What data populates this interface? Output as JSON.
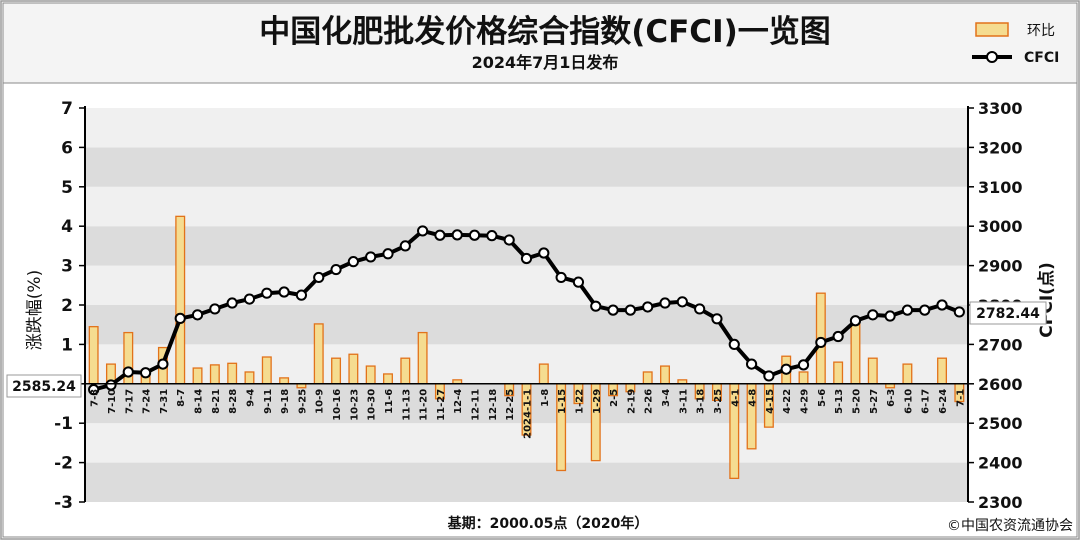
{
  "header": {
    "title": "中国化肥批发价格综合指数(CFCI)一览图",
    "subtitle": "2024年7月1日发布"
  },
  "legend": {
    "bar_label": "环比",
    "line_label": "CFCI"
  },
  "footer": {
    "base_note": "基期：2000.05点（2020年）",
    "copyright": "©中国农资流通协会"
  },
  "callouts": {
    "start_value": "2585.24",
    "end_value": "2782.44"
  },
  "colors": {
    "bar_fill": "#f5dc90",
    "bar_edge": "#e2721a",
    "line": "#000000",
    "marker_fill": "#ffffff",
    "plot_band_dark": "#dcdcdc",
    "plot_band_light": "#f0f0f0"
  },
  "chart_data": {
    "type": "bar+line",
    "title": "中国化肥批发价格综合指数(CFCI)一览图",
    "subtitle": "2024年7月1日发布",
    "ylabel_left": "涨跌幅(%)",
    "ylabel_right": "CFCI(点)",
    "xlabel": "基期：2000.05点（2020年）",
    "ylim_left": [
      -3,
      7
    ],
    "ylim_right": [
      2300,
      3300
    ],
    "yticks_left": [
      "7",
      "6",
      "5",
      "4",
      "3",
      "2",
      "1",
      "0",
      "-1",
      "-2",
      "-3"
    ],
    "yticks_right": [
      "3300",
      "3200",
      "3100",
      "3000",
      "2900",
      "2800",
      "2700",
      "2600",
      "2500",
      "2400",
      "2300"
    ],
    "grid": "horizontal bands",
    "legend_position": "top-right",
    "categories": [
      "7-3",
      "7-10",
      "7-17",
      "7-24",
      "7-31",
      "8-7",
      "8-14",
      "8-21",
      "8-28",
      "9-4",
      "9-11",
      "9-18",
      "9-25",
      "10-9",
      "10-16",
      "10-23",
      "10-30",
      "11-6",
      "11-13",
      "11-20",
      "11-27",
      "12-4",
      "12-11",
      "12-18",
      "12-25",
      "2024-1-1",
      "1-8",
      "1-15",
      "1-22",
      "1-29",
      "2-5",
      "2-19",
      "2-26",
      "3-4",
      "3-11",
      "3-18",
      "3-25",
      "4-1",
      "4-8",
      "4-15",
      "4-22",
      "4-29",
      "5-6",
      "5-13",
      "5-20",
      "5-27",
      "6-3",
      "6-10",
      "6-17",
      "6-24",
      "7-1"
    ],
    "series": [
      {
        "name": "环比",
        "type": "bar",
        "axis": "left",
        "values": [
          1.45,
          0.5,
          1.3,
          0.35,
          0.92,
          4.25,
          0.4,
          0.48,
          0.52,
          0.3,
          0.68,
          0.15,
          -0.1,
          1.52,
          0.65,
          0.75,
          0.45,
          0.25,
          0.65,
          1.3,
          -0.38,
          0.1,
          0.0,
          0.0,
          -0.3,
          -1.3,
          0.5,
          -2.2,
          -0.5,
          -1.95,
          -0.3,
          -0.2,
          0.3,
          0.45,
          0.1,
          -0.38,
          -0.42,
          -2.4,
          -1.65,
          -1.1,
          0.7,
          0.3,
          2.3,
          0.55,
          1.55,
          0.65,
          -0.1,
          0.5,
          0.0,
          0.65,
          -0.45
        ]
      },
      {
        "name": "CFCI",
        "type": "line",
        "axis": "right",
        "values": [
          2585.24,
          2597,
          2630,
          2628,
          2650,
          2766,
          2775,
          2790,
          2805,
          2815,
          2830,
          2833,
          2825,
          2870,
          2890,
          2910,
          2922,
          2930,
          2950,
          2988,
          2977,
          2978,
          2977,
          2976,
          2965,
          2918,
          2932,
          2870,
          2858,
          2797,
          2787,
          2787,
          2795,
          2805,
          2808,
          2790,
          2765,
          2700,
          2650,
          2620,
          2637,
          2648,
          2705,
          2720,
          2760,
          2775,
          2772,
          2787,
          2787,
          2800,
          2782.44
        ]
      }
    ]
  }
}
